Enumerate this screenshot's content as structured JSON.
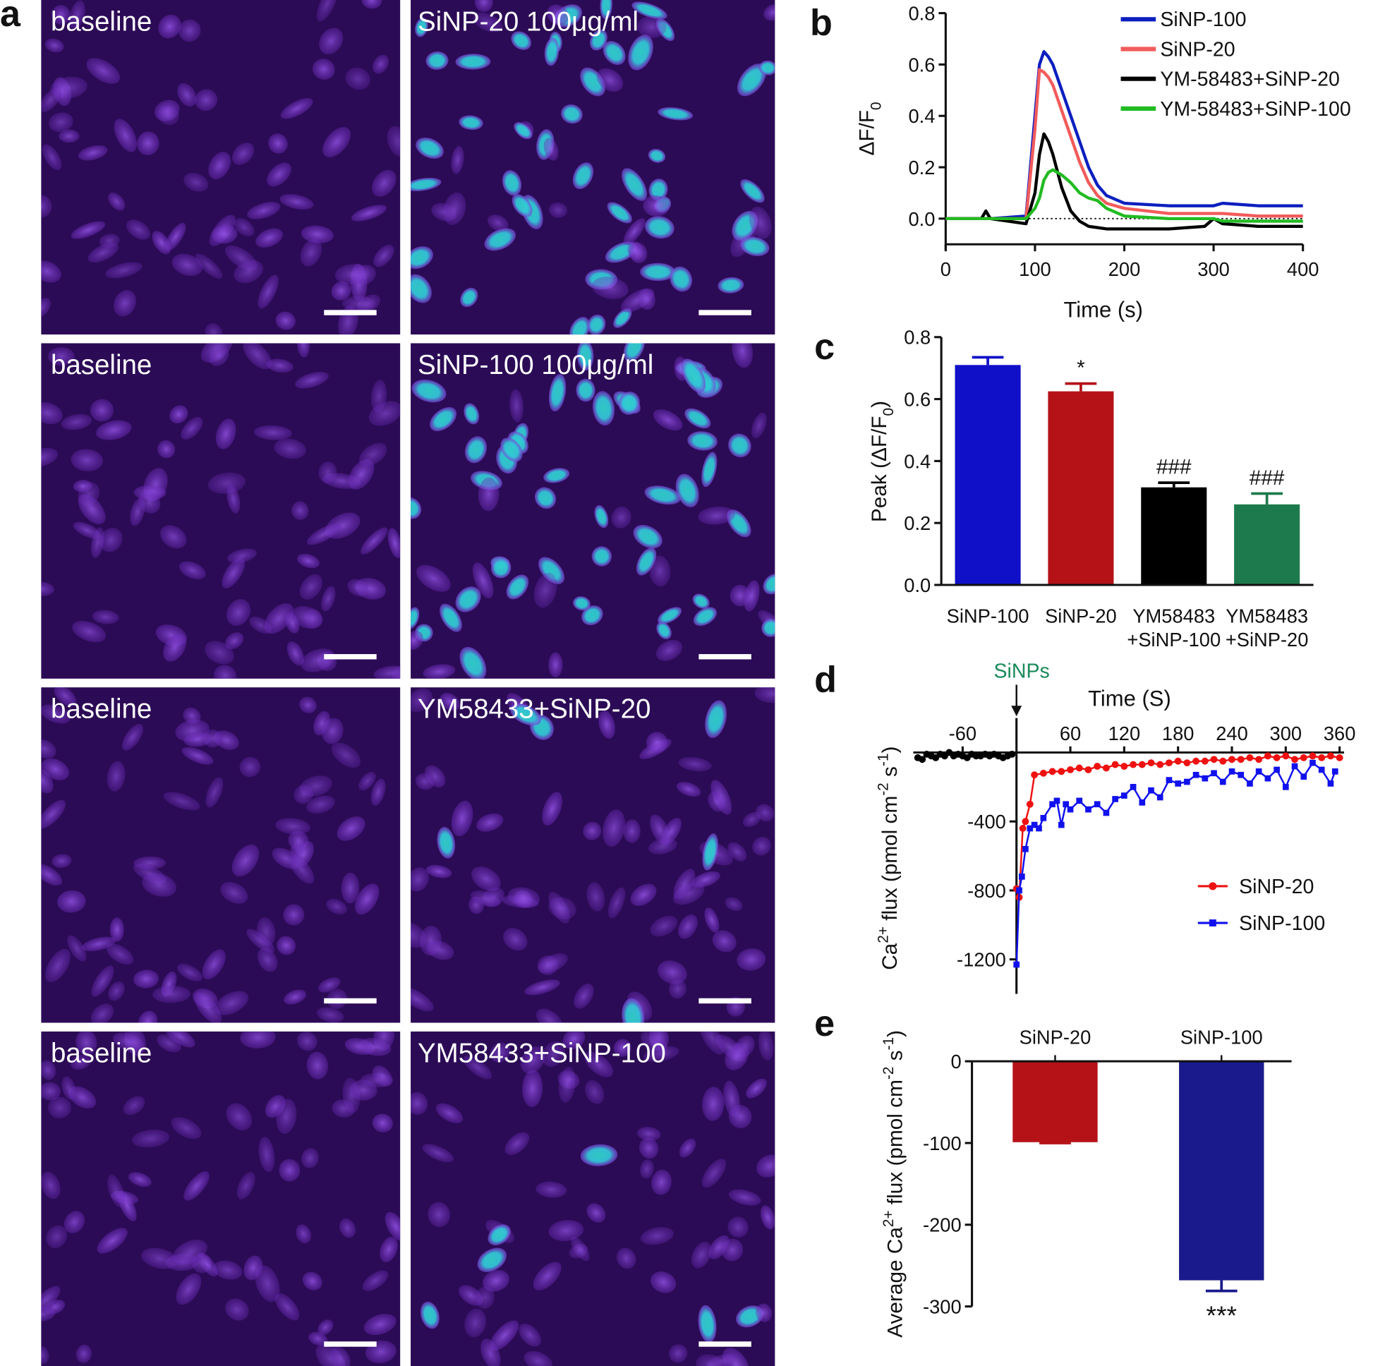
{
  "panel_a": {
    "label": "a",
    "images": [
      {
        "label": "baseline"
      },
      {
        "label": "SiNP-20 100μg/ml"
      },
      {
        "label": "baseline"
      },
      {
        "label": "SiNP-100 100μg/ml"
      },
      {
        "label": "baseline"
      },
      {
        "label": "YM58433+SiNP-20"
      },
      {
        "label": "baseline"
      },
      {
        "label": "YM58433+SiNP-100"
      }
    ]
  },
  "chart_data": [
    {
      "panel_label": "b",
      "type": "line",
      "xlabel": "Time (s)",
      "ylabel": [
        {
          "t": "ΔF/F"
        },
        {
          "t": "0",
          "pos": "sub"
        }
      ],
      "x": [
        0,
        40,
        45,
        50,
        90,
        100,
        105,
        110,
        115,
        120,
        130,
        140,
        150,
        160,
        170,
        180,
        200,
        250,
        290,
        300,
        310,
        350,
        400
      ],
      "xlim": [
        0,
        400
      ],
      "xticks": [
        0,
        100,
        200,
        300,
        400
      ],
      "ylim": [
        -0.1,
        0.8
      ],
      "yticks": [
        {
          "value": 0,
          "label": "0.0"
        },
        0.2,
        0.4,
        0.6,
        0.8
      ],
      "hline": 0,
      "legend": "upper right",
      "series": [
        {
          "name": "SiNP-100",
          "color": "#0b1fbf",
          "values": [
            0,
            0,
            0,
            0,
            0.01,
            0.4,
            0.6,
            0.65,
            0.63,
            0.6,
            0.5,
            0.4,
            0.3,
            0.2,
            0.13,
            0.09,
            0.06,
            0.05,
            0.05,
            0.05,
            0.06,
            0.05,
            0.05
          ]
        },
        {
          "name": "SiNP-20",
          "color": "#f25b5b",
          "values": [
            0,
            0,
            0,
            0,
            0,
            0.35,
            0.58,
            0.57,
            0.55,
            0.52,
            0.42,
            0.32,
            0.22,
            0.14,
            0.09,
            0.06,
            0.04,
            0.02,
            0.02,
            0.02,
            0.02,
            0.01,
            0.01
          ]
        },
        {
          "name": "YM-58483+SiNP-20",
          "color": "#000000",
          "values": [
            0,
            0,
            0.03,
            0,
            -0.02,
            0.1,
            0.25,
            0.33,
            0.3,
            0.25,
            0.12,
            0.03,
            -0.01,
            -0.03,
            -0.035,
            -0.04,
            -0.04,
            -0.04,
            -0.03,
            0,
            -0.02,
            -0.03,
            -0.03
          ]
        },
        {
          "name": "YM-58483+SiNP-100",
          "color": "#22bb22",
          "values": [
            0,
            0,
            0,
            0,
            0,
            0.04,
            0.08,
            0.15,
            0.18,
            0.19,
            0.17,
            0.14,
            0.1,
            0.08,
            0.07,
            0.04,
            0.01,
            0,
            0,
            0,
            -0.01,
            -0.01,
            -0.01
          ]
        }
      ]
    },
    {
      "panel_label": "c",
      "type": "bar",
      "ylabel": [
        {
          "t": "Peak (ΔF/F"
        },
        {
          "t": "0",
          "pos": "sub"
        },
        {
          "t": ")"
        }
      ],
      "categories": [
        [
          "SiNP-100"
        ],
        [
          "SiNP-20"
        ],
        [
          "YM58483",
          "+SiNP-100"
        ],
        [
          "YM58483",
          "+SiNP-20"
        ]
      ],
      "values": [
        0.71,
        0.625,
        0.315,
        0.26
      ],
      "errors": [
        0.025,
        0.025,
        0.015,
        0.035
      ],
      "colors": [
        "#1010c8",
        "#b51218",
        "#000000",
        "#1d7a4c"
      ],
      "annotations": [
        null,
        "*",
        "###",
        "###"
      ],
      "ylim": [
        0,
        0.8
      ],
      "yticks": [
        {
          "value": 0,
          "label": "0.0"
        },
        0.2,
        0.4,
        0.6,
        0.8
      ]
    },
    {
      "panel_label": "d",
      "type": "line",
      "markers": true,
      "xlabel": "Time (S)",
      "ylabel": [
        {
          "t": "Ca"
        },
        {
          "t": "2+",
          "pos": "super"
        },
        {
          "t": " flux (pmol cm"
        },
        {
          "t": "-2",
          "pos": "super"
        },
        {
          "t": " s"
        },
        {
          "t": "-1",
          "pos": "super"
        },
        {
          "t": ")"
        }
      ],
      "arrow_label": "SiNPs",
      "arrow_x": 0,
      "xlim": [
        -115,
        365
      ],
      "xticks": [
        -60,
        60,
        120,
        180,
        240,
        300,
        360
      ],
      "ylim": [
        -1400,
        200
      ],
      "yticks": [
        -1200,
        -800,
        -400
      ],
      "legend": "lower right",
      "series": [
        {
          "color": "#000000",
          "marker": "circle",
          "x": [
            -110,
            -105,
            -100,
            -95,
            -90,
            -85,
            -80,
            -75,
            -70,
            -65,
            -60,
            -55,
            -50,
            -45,
            -40,
            -35,
            -30,
            -25,
            -20,
            -15,
            -10,
            -5
          ],
          "values": [
            -30,
            -40,
            -10,
            -20,
            -30,
            -10,
            -20,
            0,
            -20,
            -10,
            -20,
            -30,
            -10,
            -20,
            -20,
            -10,
            -20,
            -10,
            -20,
            -30,
            -20,
            -10
          ]
        },
        {
          "name": "SiNP-20",
          "color": "#ee1111",
          "marker": "circle",
          "x": [
            0,
            3,
            7,
            10,
            15,
            20,
            30,
            40,
            50,
            60,
            70,
            80,
            90,
            100,
            110,
            120,
            130,
            140,
            150,
            160,
            170,
            180,
            190,
            200,
            210,
            220,
            230,
            240,
            250,
            260,
            270,
            280,
            290,
            300,
            310,
            320,
            330,
            340,
            350,
            360
          ],
          "values": [
            -790,
            -840,
            -440,
            -400,
            -300,
            -130,
            -120,
            -110,
            -110,
            -100,
            -90,
            -100,
            -80,
            -90,
            -70,
            -80,
            -70,
            -70,
            -60,
            -70,
            -60,
            -50,
            -60,
            -50,
            -50,
            -40,
            -50,
            -40,
            -40,
            -30,
            -40,
            -20,
            -30,
            -20,
            -40,
            -30,
            -20,
            -30,
            -20,
            -30
          ]
        },
        {
          "name": "SiNP-100",
          "color": "#1111ee",
          "marker": "square",
          "x": [
            0,
            3,
            6,
            10,
            15,
            20,
            25,
            30,
            40,
            45,
            50,
            55,
            60,
            70,
            80,
            90,
            100,
            110,
            120,
            130,
            140,
            150,
            160,
            170,
            180,
            190,
            200,
            210,
            220,
            230,
            240,
            250,
            260,
            270,
            280,
            290,
            300,
            310,
            320,
            330,
            340,
            350,
            355
          ],
          "values": [
            -1230,
            -800,
            -720,
            -560,
            -440,
            -420,
            -440,
            -380,
            -300,
            -280,
            -420,
            -300,
            -330,
            -280,
            -330,
            -300,
            -350,
            -270,
            -250,
            -200,
            -290,
            -220,
            -260,
            -160,
            -180,
            -170,
            -130,
            -150,
            -120,
            -170,
            -110,
            -130,
            -180,
            -110,
            -150,
            -100,
            -200,
            -80,
            -140,
            -60,
            -100,
            -180,
            -110
          ]
        }
      ]
    },
    {
      "panel_label": "e",
      "type": "bar",
      "ylabel": [
        {
          "t": "Average Ca"
        },
        {
          "t": "2+",
          "pos": "super"
        },
        {
          "t": " flux (pmol cm"
        },
        {
          "t": "-2",
          "pos": "super"
        },
        {
          "t": " s"
        },
        {
          "t": "-1",
          "pos": "super"
        },
        {
          "t": ")"
        }
      ],
      "categories": [
        [
          "SiNP-20"
        ],
        [
          "SiNP-100"
        ]
      ],
      "values": [
        -99,
        -268
      ],
      "errors": [
        1,
        13
      ],
      "colors": [
        "#b51218",
        "#1a1a8c"
      ],
      "annotations": [
        null,
        "***"
      ],
      "ylim": [
        -300,
        0
      ],
      "yticks": [
        0,
        -100,
        -200,
        -300
      ]
    }
  ]
}
